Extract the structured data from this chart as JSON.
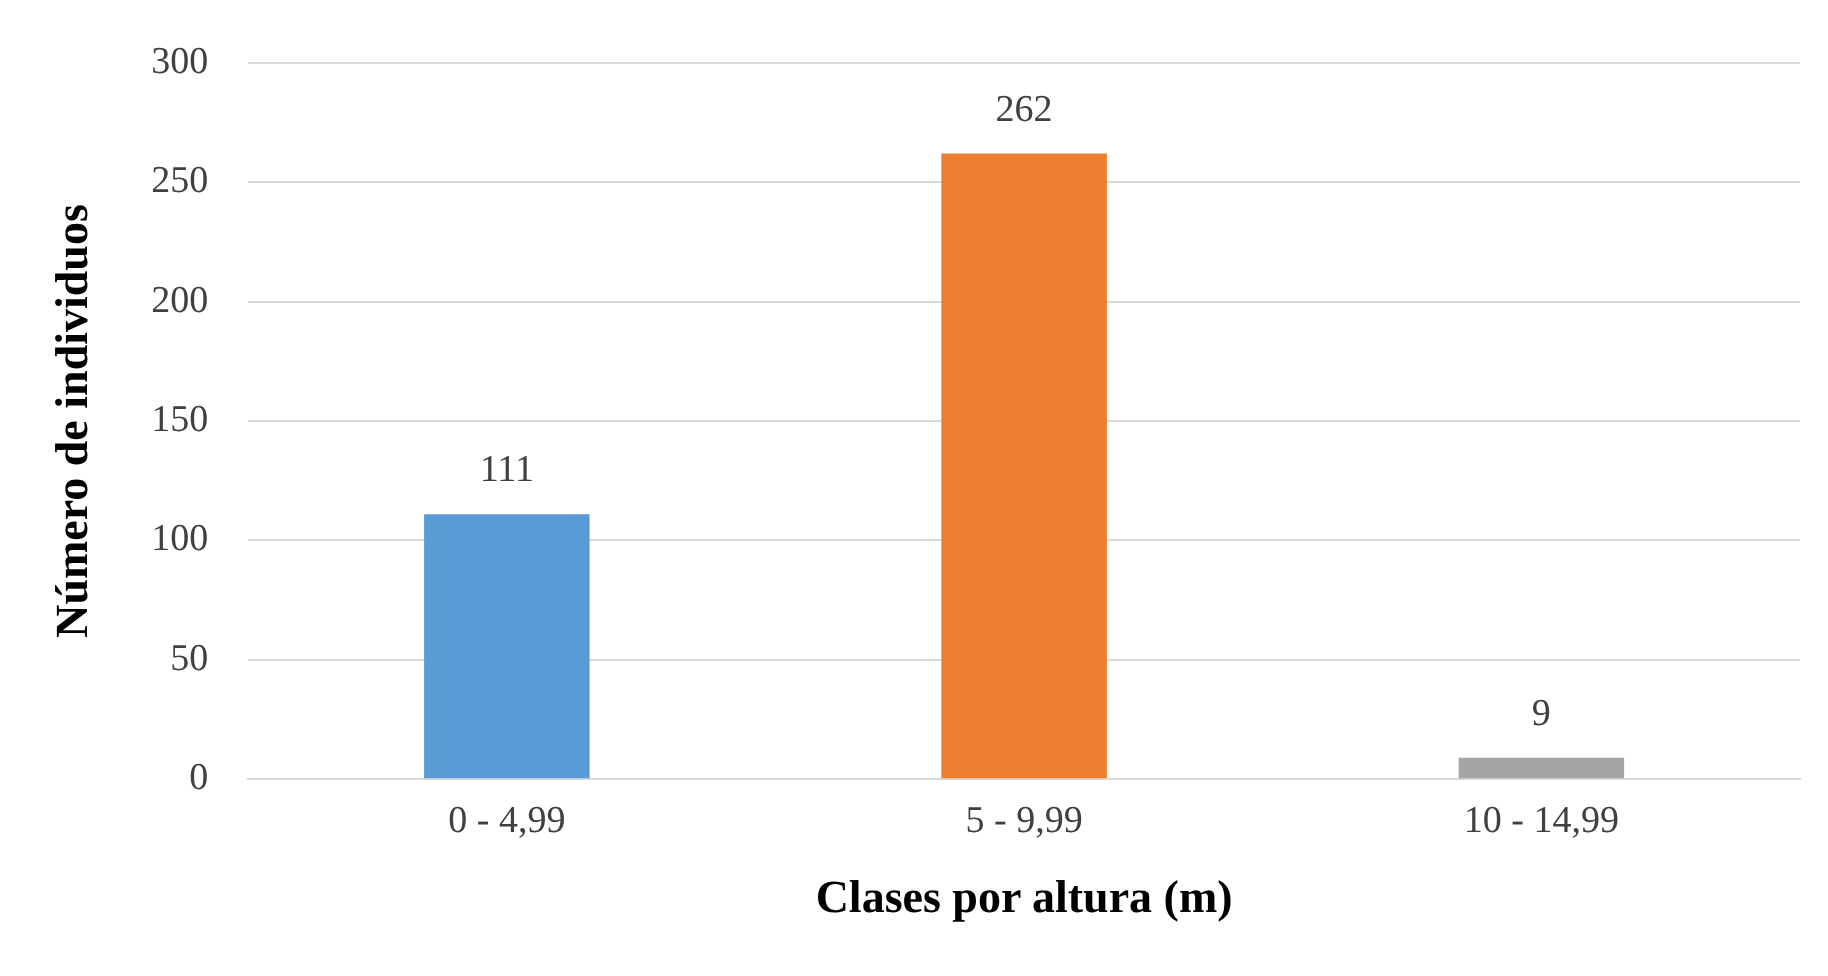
{
  "chart_data": {
    "type": "bar",
    "xlabel": "Clases por altura (m)",
    "ylabel": "Número de individuos",
    "categories": [
      "0 - 4,99",
      "5 - 9,99",
      "10 - 14,99"
    ],
    "values": [
      111,
      262,
      9
    ],
    "colors": [
      "#5b9bd5",
      "#ed7d31",
      "#a5a5a5"
    ],
    "ylim": [
      0,
      300
    ],
    "yticks": [
      0,
      50,
      100,
      150,
      200,
      250,
      300
    ],
    "grid": "y",
    "data_labels": true,
    "legend": false
  }
}
